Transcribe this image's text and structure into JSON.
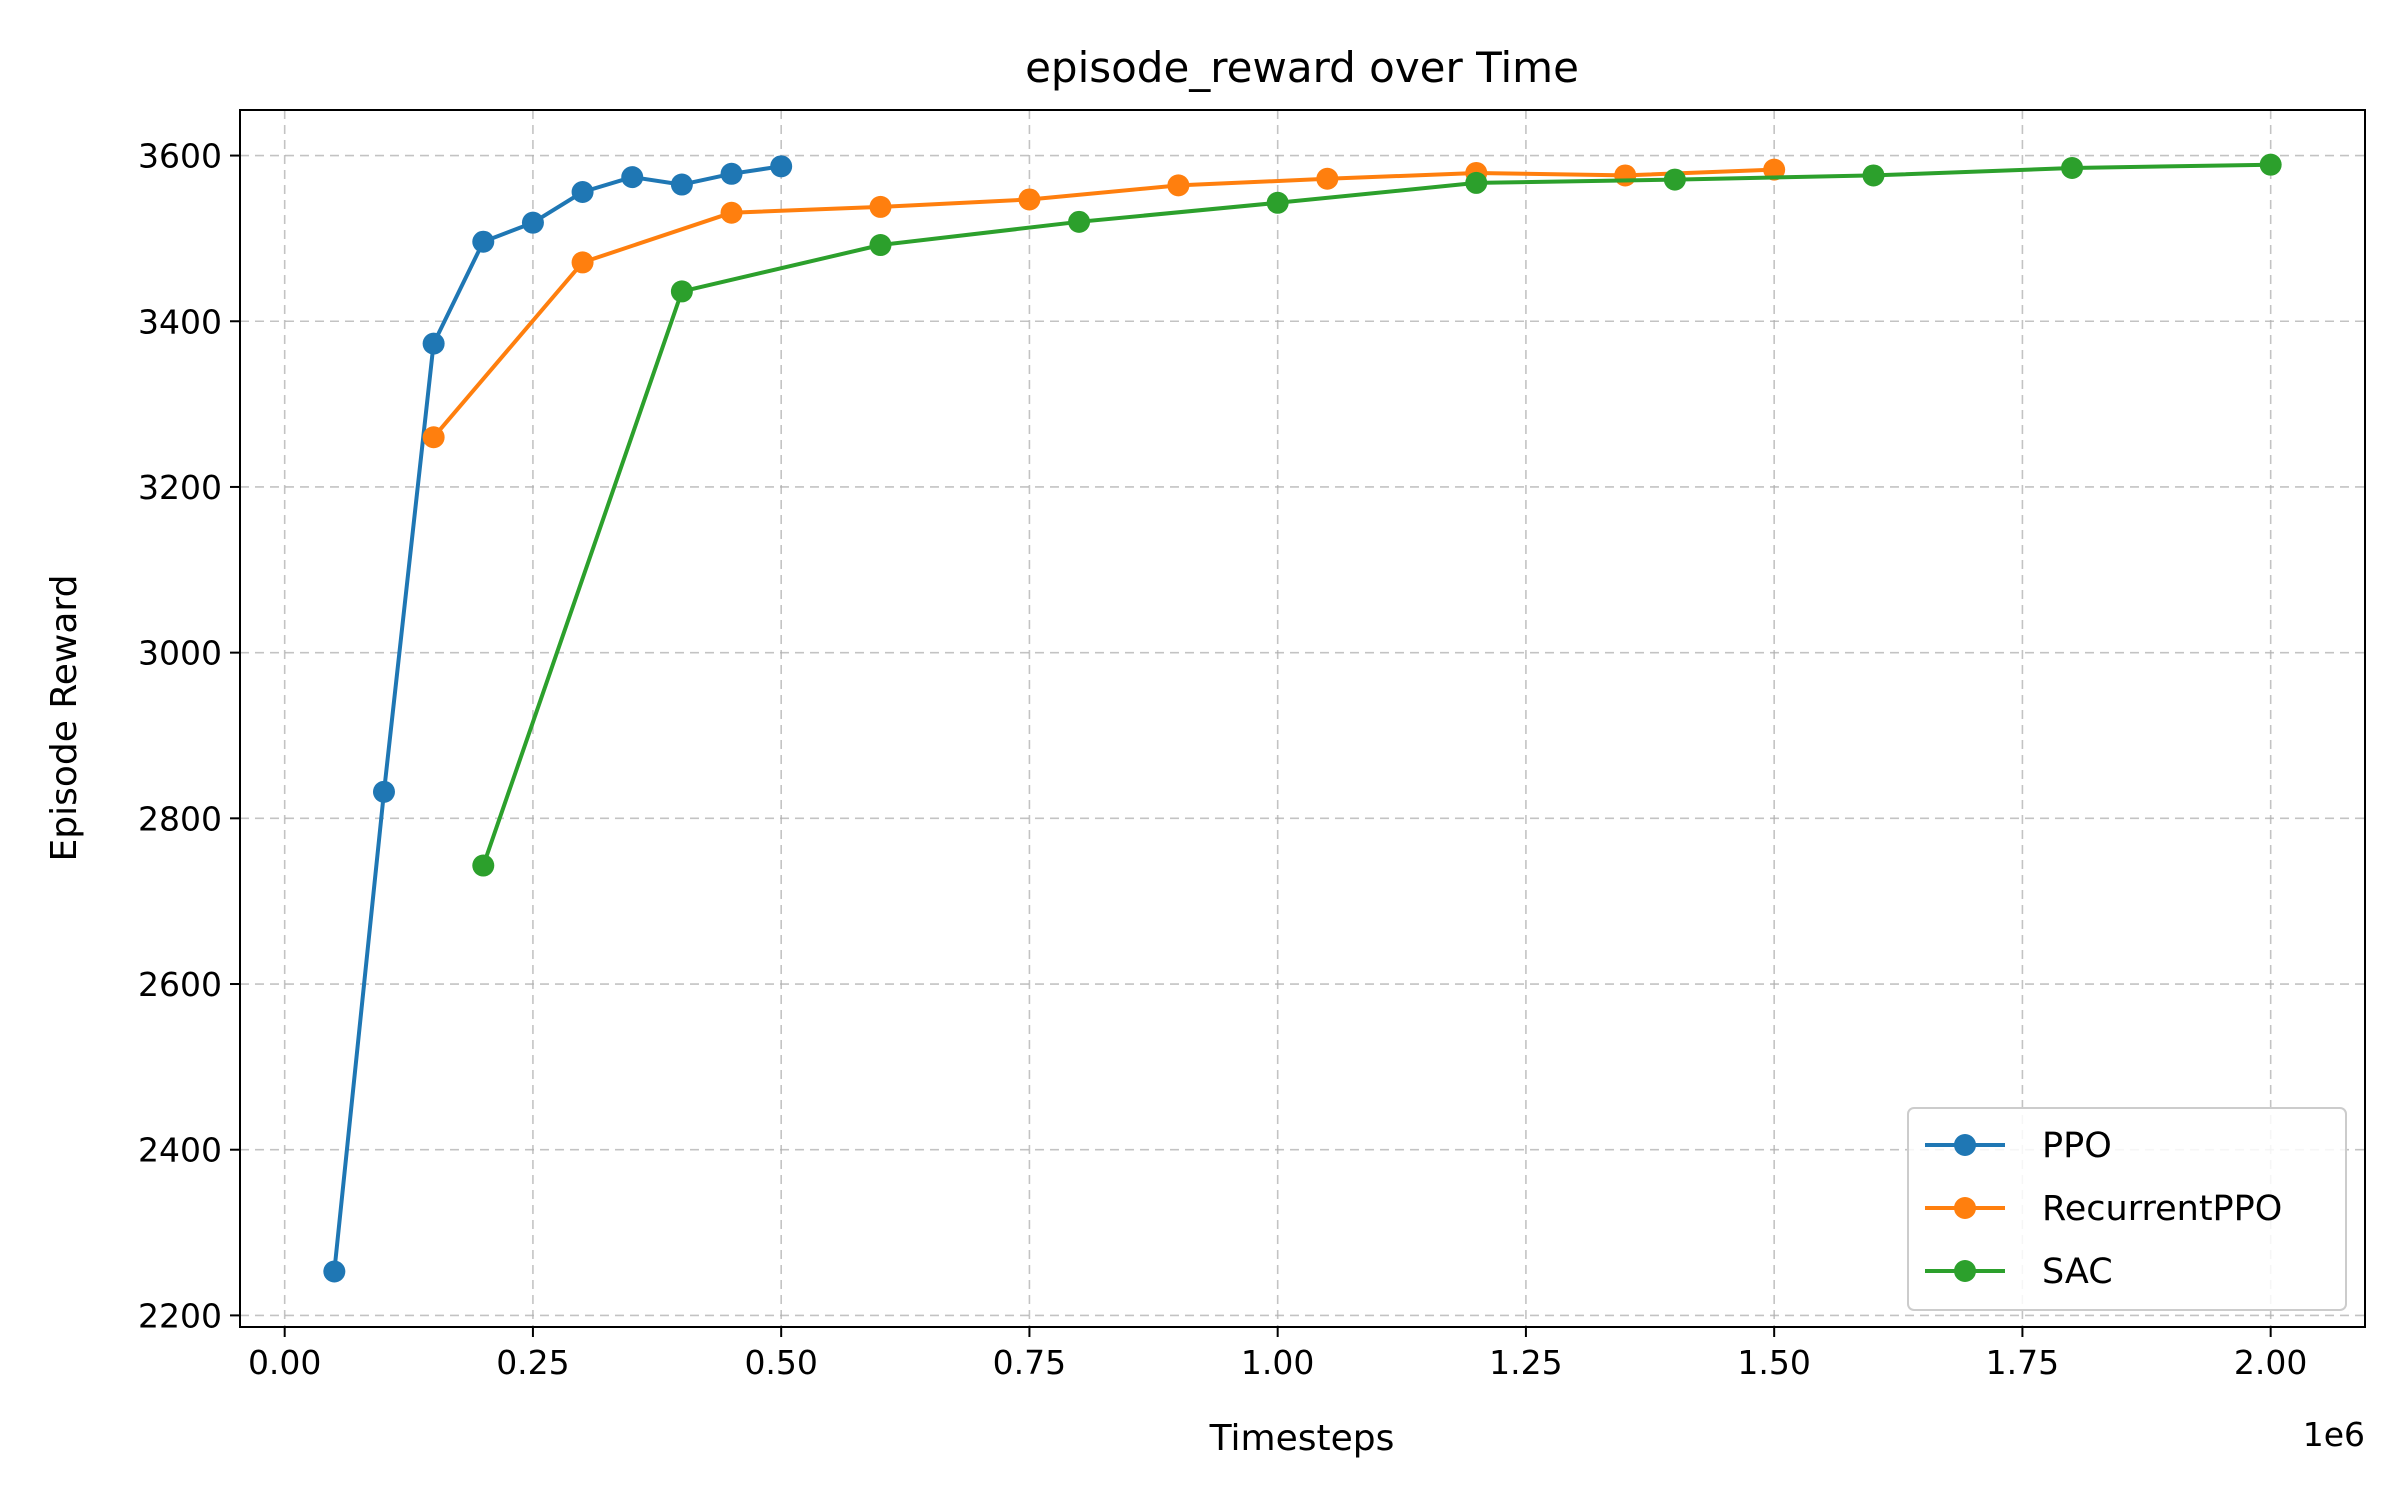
{
  "chart_data": {
    "type": "line",
    "title": "episode_reward over Time",
    "xlabel": "Timesteps",
    "ylabel": "Episode Reward",
    "x_offset_label": "1e6",
    "xlim": [
      -0.045,
      2.095
    ],
    "ylim": [
      2186,
      3655
    ],
    "xticks": [
      0.0,
      0.25,
      0.5,
      0.75,
      1.0,
      1.25,
      1.5,
      1.75,
      2.0
    ],
    "xtick_labels": [
      "0.00",
      "0.25",
      "0.50",
      "0.75",
      "1.00",
      "1.25",
      "1.50",
      "1.75",
      "2.00"
    ],
    "yticks": [
      2200,
      2400,
      2600,
      2800,
      3000,
      3200,
      3400,
      3600
    ],
    "ytick_labels": [
      "2200",
      "2400",
      "2600",
      "2800",
      "3000",
      "3200",
      "3400",
      "3600"
    ],
    "grid": true,
    "legend_position": "bottom-right",
    "series": [
      {
        "name": "PPO",
        "color": "#1f77b4",
        "x": [
          0.05,
          0.1,
          0.15,
          0.2,
          0.25,
          0.3,
          0.35,
          0.4,
          0.45,
          0.5
        ],
        "y": [
          2253,
          2832,
          3373,
          3496,
          3519,
          3556,
          3574,
          3565,
          3578,
          3587
        ]
      },
      {
        "name": "RecurrentPPO",
        "color": "#ff7f0e",
        "x": [
          0.15,
          0.3,
          0.45,
          0.6,
          0.75,
          0.9,
          1.05,
          1.2,
          1.35,
          1.5
        ],
        "y": [
          3260,
          3471,
          3531,
          3538,
          3547,
          3564,
          3572,
          3579,
          3576,
          3583
        ]
      },
      {
        "name": "SAC",
        "color": "#2ca02c",
        "x": [
          0.2,
          0.4,
          0.6,
          0.8,
          1.0,
          1.2,
          1.4,
          1.6,
          1.8,
          2.0
        ],
        "y": [
          2743,
          3436,
          3492,
          3520,
          3543,
          3567,
          3571,
          3576,
          3585,
          3589
        ]
      }
    ]
  }
}
